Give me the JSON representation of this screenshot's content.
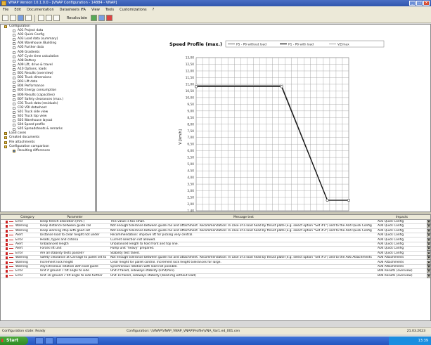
{
  "window": {
    "title": "WVAP Version 10.1.0.0 - [VNAP Configuration - 14884 - VNAP]"
  },
  "menu": [
    "File",
    "Edit",
    "Documentation",
    "Datasheets IFA",
    "View",
    "Tools",
    "Customizations",
    "?"
  ],
  "toolbar": {
    "label": "Recalculate"
  },
  "tree": [
    {
      "level": 0,
      "icon": "folder",
      "label": "Configuration"
    },
    {
      "level": 1,
      "icon": "doc",
      "label": "A01 Project data"
    },
    {
      "level": 1,
      "icon": "doc",
      "label": "A02 Quick Config"
    },
    {
      "level": 1,
      "icon": "doc",
      "label": "A03 Load data (summary)"
    },
    {
      "level": 1,
      "icon": "doc",
      "label": "A04 Warehouse /Building"
    },
    {
      "level": 1,
      "icon": "doc",
      "label": "A05 Further data"
    },
    {
      "level": 1,
      "icon": "doc",
      "label": "A06 Gradients"
    },
    {
      "level": 1,
      "icon": "doc",
      "label": "A07 Cycle time calculation"
    },
    {
      "level": 1,
      "icon": "doc",
      "label": "A08 Battery"
    },
    {
      "level": 1,
      "icon": "doc",
      "label": "A09 Lift, drive & travel"
    },
    {
      "level": 1,
      "icon": "doc",
      "label": "A10 Options, loads"
    },
    {
      "level": 1,
      "icon": "doc",
      "label": "B01 Results (overview)"
    },
    {
      "level": 1,
      "icon": "doc",
      "label": "B02 Truck dimensions"
    },
    {
      "level": 1,
      "icon": "doc",
      "label": "B03 Lift data"
    },
    {
      "level": 1,
      "icon": "doc",
      "label": "B04 Performance"
    },
    {
      "level": 1,
      "icon": "doc",
      "label": "B05 Energy consumption"
    },
    {
      "level": 1,
      "icon": "doc",
      "label": "B06 Results (capacities)"
    },
    {
      "level": 1,
      "icon": "doc",
      "label": "B07 Safety clearances (max.)"
    },
    {
      "level": 1,
      "icon": "doc",
      "label": "C01 Truck data (residuals)"
    },
    {
      "level": 1,
      "icon": "doc",
      "label": "C02 VDI datasheet"
    },
    {
      "level": 1,
      "icon": "doc",
      "label": "S01 Truck side view"
    },
    {
      "level": 1,
      "icon": "doc",
      "label": "S02 Truck top view"
    },
    {
      "level": 1,
      "icon": "doc",
      "label": "S03 Warehouse layout"
    },
    {
      "level": 1,
      "icon": "doc",
      "label": "S04 Speed profile"
    },
    {
      "level": 1,
      "icon": "doc",
      "label": "S05 Spreadsheets & remarks"
    },
    {
      "level": 0,
      "icon": "folder",
      "label": "Load cases"
    },
    {
      "level": 0,
      "icon": "folder",
      "label": "Created documents"
    },
    {
      "level": 0,
      "icon": "folder",
      "label": "File attachments"
    },
    {
      "level": 0,
      "icon": "folder",
      "label": "Configuration comparison"
    },
    {
      "level": 1,
      "icon": "blue",
      "label": "Resulting differences"
    }
  ],
  "chart_data": {
    "type": "line",
    "title": "Speed Profile (max.)",
    "ylabel": "V [km/h]",
    "xlabel": "",
    "ylim": [
      1.4,
      13.0
    ],
    "y_ticks": [
      "13,00",
      "12,50",
      "12,00",
      "11,50",
      "11,00",
      "10,50",
      "10,00",
      "9,50",
      "9,00",
      "8,50",
      "8,00",
      "7,50",
      "7,00",
      "6,50",
      "6,00",
      "5,50",
      "5,00",
      "4,50",
      "4,00",
      "3,50",
      "3,00",
      "2,50",
      "2,00",
      "1,40"
    ],
    "grid": true,
    "legend_position": "top",
    "series": [
      {
        "name": "P5 - P6 without load",
        "color": "#8a8a8a",
        "points": [
          [
            0,
            10.9
          ],
          [
            0.56,
            10.9
          ],
          [
            0.86,
            2.2
          ],
          [
            1.0,
            2.2
          ]
        ]
      },
      {
        "name": "P1 - P6 with load",
        "color": "#111111",
        "points": [
          [
            0,
            10.8
          ],
          [
            0.56,
            10.8
          ],
          [
            0.86,
            2.2
          ],
          [
            1.0,
            2.2
          ]
        ]
      },
      {
        "name": "VZ/max",
        "color": "#b8b8b8",
        "points": []
      }
    ]
  },
  "grid": {
    "headers": [
      "Category",
      "Parameter",
      "Message text",
      "",
      "Impacts"
    ],
    "rows": [
      {
        "cat": "Error",
        "param": "Deep trench allocation (mm.)",
        "msg": "This value is too small.",
        "impact": "A03 Quick Config"
      },
      {
        "cat": "Warning",
        "param": "Deep distance between guide rail",
        "msg": "Not enough tolerance between guide rail and attachment. Recommendation: In case of a load head by thrust plate (e.g. select option \"Set #1\") and to the A04 Quick Config",
        "impact": "A04 Quick Config"
      },
      {
        "cat": "Warning",
        "param": "Deep warning stop with good set",
        "msg": "Not enough tolerance between guide rail and attachment. Recommendation: In case of a load head by thrust plate (e.g. select option \"Set #3\") and to the A04 Quick Config",
        "impact": "A04 Quick Config"
      },
      {
        "cat": "Alert",
        "param": "Distance load to clear height not under",
        "msg": "Recommendation: improve lift for picking very central.",
        "impact": "A04 Quick Config"
      },
      {
        "cat": "Error",
        "param": "Heads, types and criteria",
        "msg": "Current selection not allowed.",
        "impact": "A04 Quick Config"
      },
      {
        "cat": "Alert",
        "param": "Unbalanced length",
        "msg": "Unbalanced length to hold front and top line.",
        "impact": "A04 Quick Config"
      },
      {
        "cat": "Alert",
        "param": "Forces lift unit",
        "msg": "Pump unit \"heavy\" prepared.",
        "impact": "A04 Quick Config"
      },
      {
        "cat": "Error",
        "param": "Are all stability tests passed?",
        "msg": "Stability test failed.",
        "impact": "A04 Quick Config"
      },
      {
        "cat": "Warning",
        "param": "Safety clearance at Carriage to pallet set to",
        "msg": "Not enough tolerance between guide rail and attachment. Recommendation: In case of a load head by thrust plate (e.g. select option \"Set #3\") and to the A06 Attachments",
        "impact": "A06 Attachments"
      },
      {
        "cat": "Warning",
        "param": "Increment lock height",
        "msg": "Clear height for pallet control. Increment lock height tolerances for large.",
        "impact": "A06 Attachments"
      },
      {
        "cat": "Warning",
        "param": "Asynchronous rotation with load guide",
        "msg": "Synchronous rotation with load not possible.",
        "impact": "A06 Attachments"
      },
      {
        "cat": "Error",
        "param": "Unit if ground 7 tilt angle to side",
        "msg": "Unit if failed, sideways stability (limit/min).",
        "impact": "B06 Results (overview)"
      },
      {
        "cat": "Error",
        "param": "Unit 10 ground 7 tilt angle to side further",
        "msg": "Unit 10 failed, sideways stability (dead-mg without load)",
        "impact": "B06 Results (overview)"
      }
    ]
  },
  "status": {
    "left": "Configuration state: Ready",
    "middle": "Configuration: \\\\VNAP\\VNAP_VNAP_VNAP\\Profile\\VNA_Var1.ed_001.cen",
    "right": "21.03.2023"
  },
  "taskbar": {
    "start": "Start",
    "time": "13:39"
  }
}
